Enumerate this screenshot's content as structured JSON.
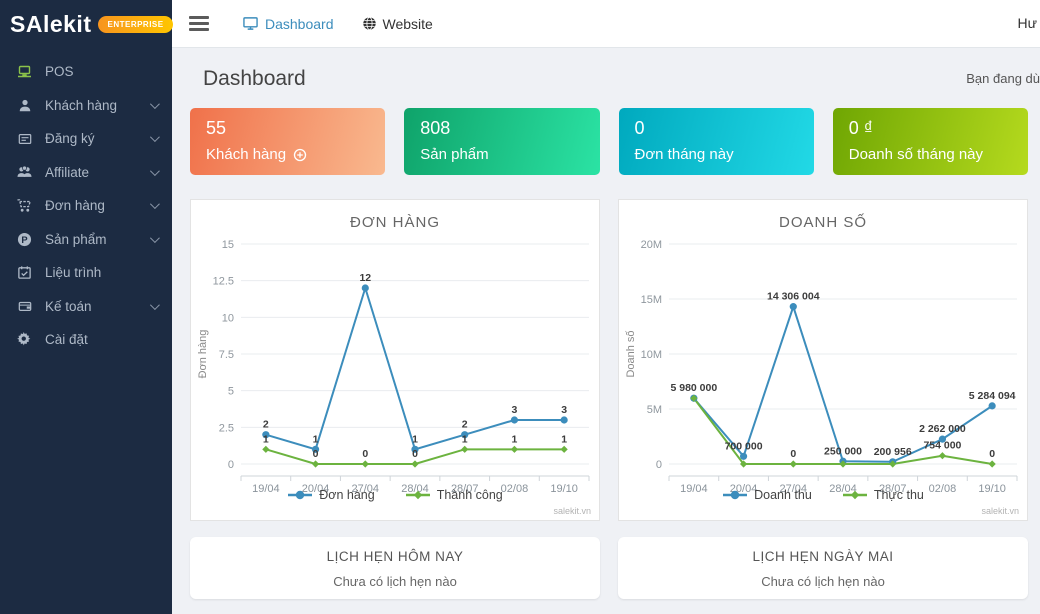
{
  "brand": {
    "name": "SAlekit",
    "badge": "ENTERPRISE"
  },
  "topnav": {
    "hamburger_icon": "hamburger-icon",
    "links": [
      {
        "label": "Dashboard",
        "icon": "monitor-icon",
        "active": true
      },
      {
        "label": "Website",
        "icon": "globe-icon",
        "active": false
      }
    ],
    "user": "Hư"
  },
  "sidebar": {
    "items": [
      {
        "label": "POS",
        "icon": "pos-icon",
        "chevron": false
      },
      {
        "label": "Khách hàng",
        "icon": "user-icon",
        "chevron": true
      },
      {
        "label": "Đăng ký",
        "icon": "registration-icon",
        "chevron": true
      },
      {
        "label": "Affiliate",
        "icon": "affiliate-icon",
        "chevron": true
      },
      {
        "label": "Đơn hàng",
        "icon": "cart-icon",
        "chevron": true
      },
      {
        "label": "Sản phẩm",
        "icon": "product-icon",
        "chevron": true
      },
      {
        "label": "Liệu trình",
        "icon": "calendar-icon",
        "chevron": false
      },
      {
        "label": "Kế toán",
        "icon": "wallet-icon",
        "chevron": true
      },
      {
        "label": "Cài đặt",
        "icon": "gear-icon",
        "chevron": false
      }
    ]
  },
  "page": {
    "title": "Dashboard",
    "right_note": "Bạn đang dù"
  },
  "stats": [
    {
      "value": "55",
      "label": "Khách hàng",
      "icon": "plus-circle-icon",
      "color_from": "#f0714a",
      "color_to": "#f9b98f"
    },
    {
      "value": "808",
      "label": "Sản phẩm",
      "icon": null,
      "color_from": "#0fa36a",
      "color_to": "#2be3a4"
    },
    {
      "value": "0",
      "label": "Đơn tháng này",
      "icon": null,
      "color_from": "#00a9be",
      "color_to": "#22d9e6"
    },
    {
      "value": "0 ₫",
      "label": "Doanh số tháng này",
      "icon": null,
      "color_from": "#6fa603",
      "color_to": "#b5da1e"
    }
  ],
  "chart_data": [
    {
      "type": "line",
      "title": "ĐƠN HÀNG",
      "ylabel": "Đơn hàng",
      "xlabel": "",
      "categories": [
        "19/04",
        "20/04",
        "27/04",
        "28/04",
        "28/07",
        "02/08",
        "19/10"
      ],
      "series": [
        {
          "name": "Đơn hàng",
          "color": "#3c8dbc",
          "marker": "circle",
          "values": [
            2,
            1,
            12,
            1,
            2,
            3,
            3
          ],
          "labels": [
            "2",
            "1",
            "12",
            "1",
            "2",
            "3",
            "3"
          ]
        },
        {
          "name": "Thành công",
          "color": "#6cb33f",
          "marker": "diamond",
          "values": [
            1,
            0,
            0,
            0,
            1,
            1,
            1
          ],
          "labels": [
            "1",
            "0",
            "0",
            "0",
            "1",
            "1",
            "1"
          ]
        }
      ],
      "ylim": [
        0,
        15
      ],
      "yticks": [
        [
          0,
          "0"
        ],
        [
          2.5,
          "2.5"
        ],
        [
          5,
          "5"
        ],
        [
          7.5,
          "7.5"
        ],
        [
          10,
          "10"
        ],
        [
          12.5,
          "12.5"
        ],
        [
          15,
          "15"
        ]
      ],
      "grid": true,
      "legend_position": "bottom"
    },
    {
      "type": "line",
      "title": "DOANH SỐ",
      "ylabel": "Doanh số",
      "xlabel": "",
      "categories": [
        "19/04",
        "20/04",
        "27/04",
        "28/04",
        "28/07",
        "02/08",
        "19/10"
      ],
      "series": [
        {
          "name": "Doanh thu",
          "color": "#3c8dbc",
          "marker": "circle",
          "values": [
            5980000,
            700000,
            14306004,
            250000,
            200956,
            2262000,
            5284094
          ],
          "labels": [
            "5 980 000",
            "700 000",
            "14 306 004",
            "250 000",
            "200 956",
            "2 262 000",
            "5 284 094"
          ]
        },
        {
          "name": "Thực thu",
          "color": "#6cb33f",
          "marker": "diamond",
          "values": [
            5980000,
            0,
            0,
            0,
            0,
            754000,
            0
          ],
          "labels": [
            null,
            null,
            "0",
            null,
            null,
            "754 000",
            "0"
          ]
        }
      ],
      "ylim": [
        0,
        20000000
      ],
      "yticks": [
        [
          0,
          "0"
        ],
        [
          5000000,
          "5M"
        ],
        [
          10000000,
          "10M"
        ],
        [
          15000000,
          "15M"
        ],
        [
          20000000,
          "20M"
        ]
      ],
      "grid": true,
      "legend_position": "bottom"
    }
  ],
  "watermark": "salekit.vn",
  "appointments": [
    {
      "title": "LỊCH HẸN HÔM NAY",
      "empty": "Chưa có lịch hẹn nào"
    },
    {
      "title": "LỊCH HẸN NGÀY MAI",
      "empty": "Chưa có lịch hẹn nào"
    }
  ],
  "colors": {
    "sidebar_bg": "#1c2b42",
    "accent_blue": "#3c8dbc",
    "chart_green": "#6cb33f",
    "badge_from": "#f7941e",
    "badge_to": "#ffc600",
    "content_bg": "#eff1f5"
  }
}
